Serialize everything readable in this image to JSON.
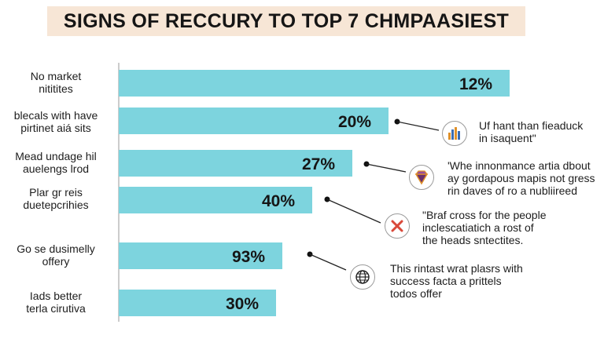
{
  "title": "SIGNS OF RECCURY TO TOP 7 CHMPAASIEST",
  "colors": {
    "bar": "#7dd4de",
    "title_bg": "#f7e6d6",
    "icon_cross": "#d9493a",
    "icon_gem": "#6b2f6b",
    "icon_gem_rim": "#e0912a"
  },
  "chart_data": {
    "type": "bar",
    "orientation": "horizontal",
    "categories": [
      "No market\nnititites",
      "blecals with have\npirtinet aiá sits",
      "Mead undage hil\nauelengs lrod",
      "Plar gr reis\nduetepcrihies",
      "Go se dusimelly\noffery",
      "Iads better\nterla cirutiva"
    ],
    "values": [
      12,
      20,
      27,
      40,
      93,
      30
    ],
    "value_labels": [
      "12%",
      "20%",
      "27%",
      "40%",
      "93%",
      "30%"
    ],
    "grid": false,
    "legend": "none"
  },
  "annotations": [
    {
      "text": "Uf hant than fieaduck\nin isaquent\"",
      "icon": "bar-chart-icon"
    },
    {
      "text": "'Whe innonmance artia dbout\nay gordapous mapis not gress\nrin daves of ro a nubliireed",
      "icon": "gem-icon"
    },
    {
      "text": "\"Braf cross for the people\ninclescatiatich a rost of\nthe heads sntectites.",
      "icon": "cross-icon"
    },
    {
      "text": "This rintast wrat plasrs with\nsuccess facta a prittels\ntodos offer",
      "icon": "globe-icon"
    }
  ]
}
